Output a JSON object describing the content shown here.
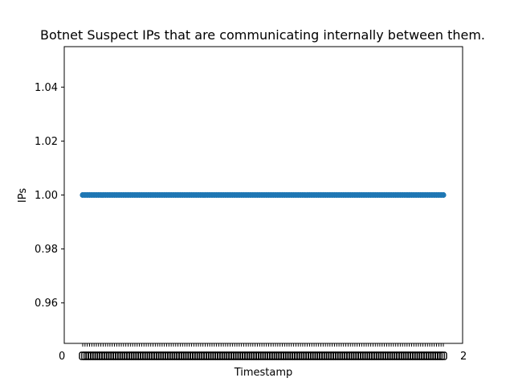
{
  "chart_data": {
    "type": "scatter",
    "title": "Botnet Suspect IPs that are communicating internally between them.",
    "xlabel": "Timestamp",
    "ylabel": "IPs",
    "ylim": [
      0.945,
      1.055
    ],
    "yticks": [
      0.96,
      0.98,
      1.0,
      1.02,
      1.04
    ],
    "ytick_labels": [
      "0.96",
      "0.98",
      "1.00",
      "1.02",
      "1.04"
    ],
    "x_category_count": 160,
    "series": [
      {
        "y_value": 1.0,
        "color": "#1f77b4"
      }
    ],
    "grid": false,
    "legend": "none"
  }
}
